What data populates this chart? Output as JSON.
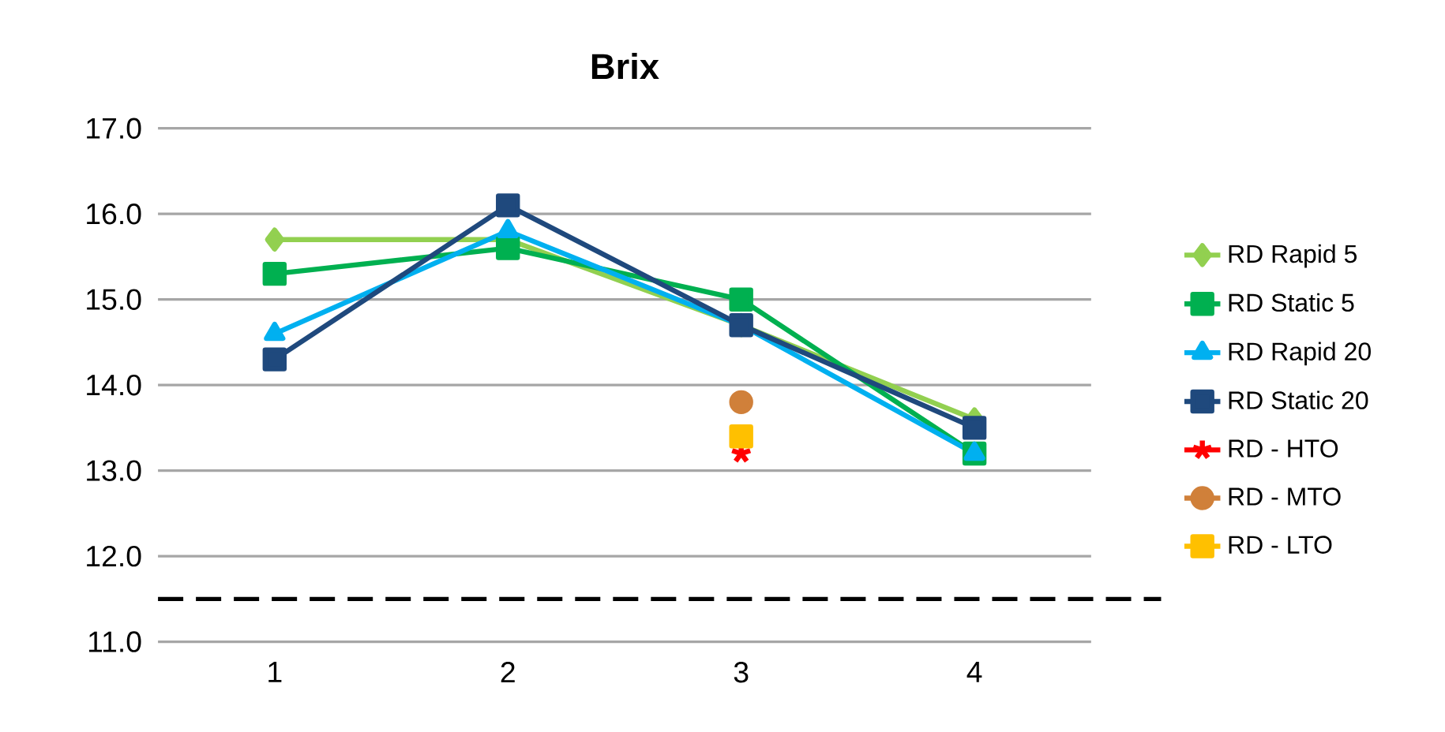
{
  "chart_data": {
    "type": "line",
    "title": "Brix",
    "categories": [
      "1",
      "2",
      "3",
      "4"
    ],
    "series": [
      {
        "name": "RD Rapid  5",
        "color": "#92d050",
        "marker": "diamond",
        "values": [
          15.7,
          15.7,
          14.7,
          13.6
        ]
      },
      {
        "name": "RD Static  5",
        "color": "#00b050",
        "marker": "square",
        "values": [
          15.3,
          15.6,
          15.0,
          13.2
        ]
      },
      {
        "name": "RD Rapid  20",
        "color": "#00b0f0",
        "marker": "triangle",
        "values": [
          14.6,
          15.8,
          14.7,
          13.2
        ]
      },
      {
        "name": "RD Static  20",
        "color": "#1f497d",
        "marker": "square",
        "values": [
          14.3,
          16.1,
          14.7,
          13.5
        ]
      },
      {
        "name": "RD -  HTO",
        "color": "#ff0000",
        "marker": "cross",
        "values": [
          null,
          null,
          13.2,
          null
        ]
      },
      {
        "name": "RD -  MTO",
        "color": "#d0803a",
        "marker": "circle",
        "values": [
          null,
          null,
          13.8,
          null
        ]
      },
      {
        "name": "RD -  LTO",
        "color": "#ffc000",
        "marker": "square",
        "values": [
          null,
          null,
          13.4,
          null
        ]
      }
    ],
    "ylim": [
      11.0,
      17.0
    ],
    "yticks": [
      {
        "value": 11,
        "label": "11.0"
      },
      {
        "value": 12,
        "label": "12.0"
      },
      {
        "value": 13,
        "label": "13.0"
      },
      {
        "value": 14,
        "label": "14.0"
      },
      {
        "value": 15,
        "label": "15.0"
      },
      {
        "value": 16,
        "label": "16.0"
      },
      {
        "value": 17,
        "label": "17.0"
      }
    ],
    "grid": "y",
    "legend": "right",
    "ref_lines": [
      {
        "axis": "y",
        "value": 11.5,
        "color": "#000000",
        "line_style": "dashed"
      }
    ]
  }
}
